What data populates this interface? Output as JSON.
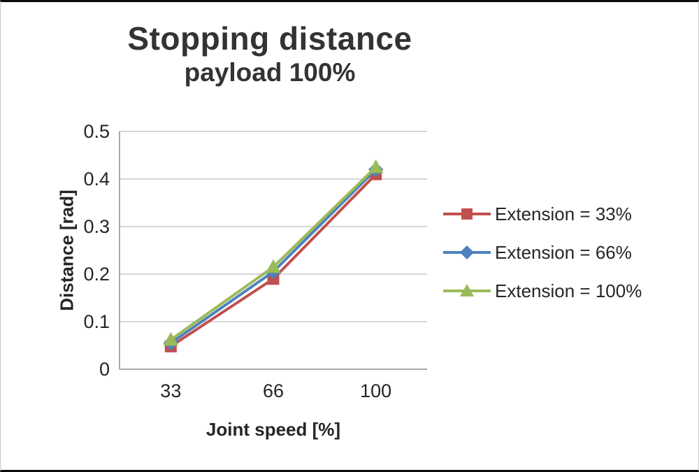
{
  "chart_data": {
    "type": "line",
    "title": "Stopping distance",
    "subtitle": "payload 100%",
    "xlabel": "Joint speed [%]",
    "ylabel": "Distance [rad]",
    "categories": [
      "33",
      "66",
      "100"
    ],
    "series": [
      {
        "name": "Extension = 33%",
        "values": [
          0.048,
          0.19,
          0.41
        ],
        "color": "#C0504D",
        "marker": "square"
      },
      {
        "name": "Extension = 66%",
        "values": [
          0.055,
          0.205,
          0.42
        ],
        "color": "#4F81BD",
        "marker": "diamond"
      },
      {
        "name": "Extension = 100%",
        "values": [
          0.062,
          0.215,
          0.425
        ],
        "color": "#9BBB59",
        "marker": "triangle"
      }
    ],
    "ylim": [
      0,
      0.5
    ],
    "ytick_step": 0.1,
    "y_tick_labels": [
      "0",
      "0.1",
      "0.2",
      "0.3",
      "0.4",
      "0.5"
    ],
    "grid": true,
    "legend_position": "right",
    "colors": {
      "gridline": "#c9c9c9",
      "axis": "#8c8c8c",
      "text": "#262626",
      "title": "#333333"
    }
  }
}
